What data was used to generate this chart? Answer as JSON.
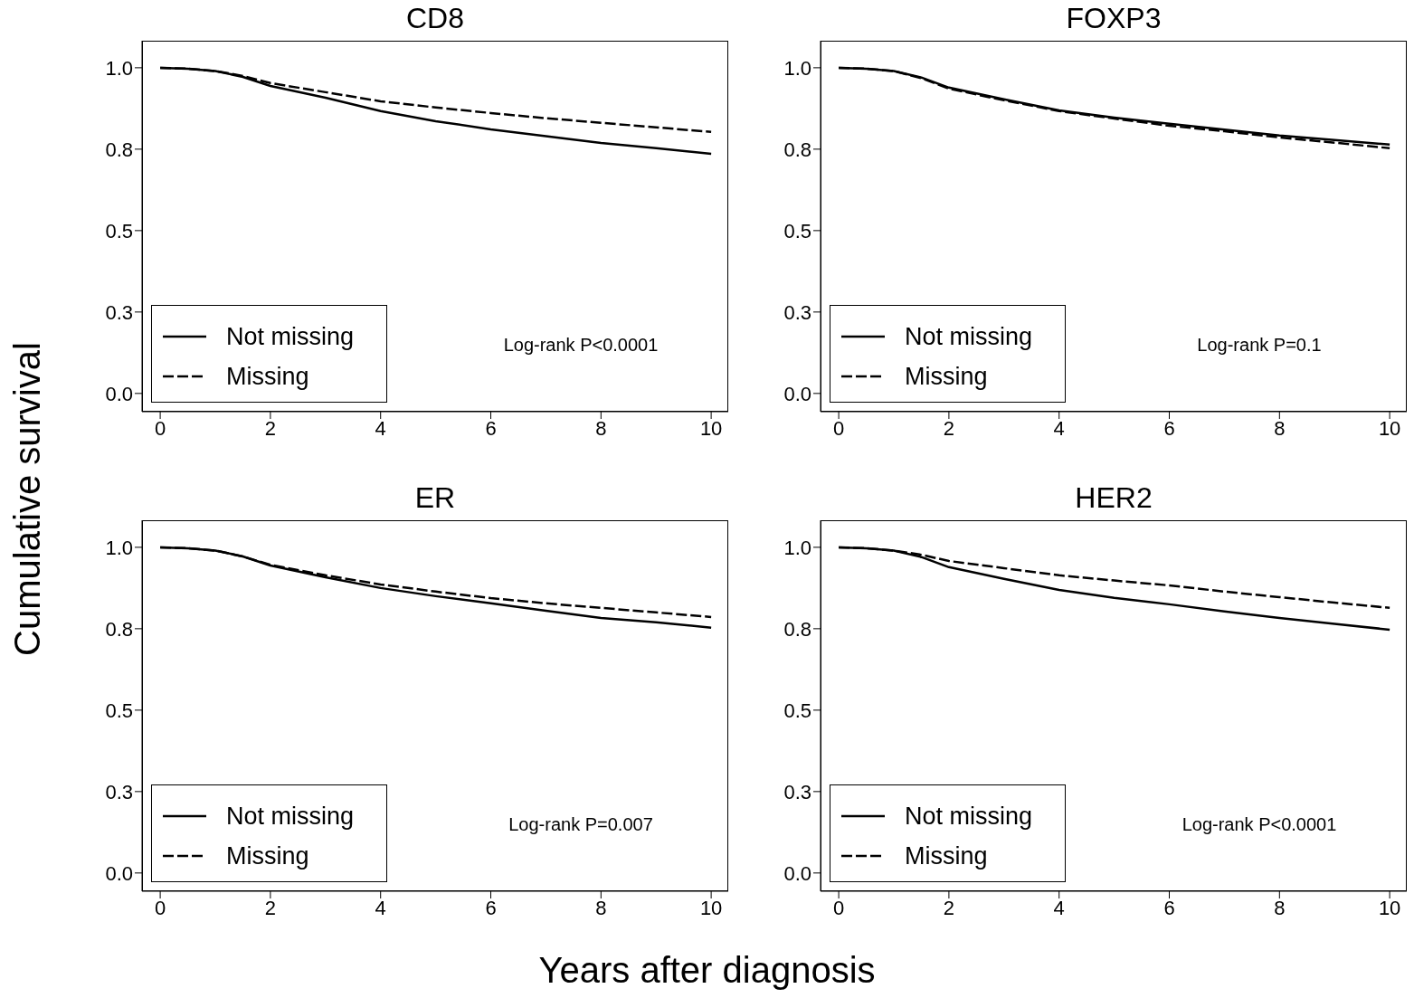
{
  "chart_data": [
    {
      "type": "line",
      "title": "CD8",
      "ylabel": "Cumulative survival",
      "x": [
        0,
        0.5,
        1,
        1.5,
        2,
        3,
        4,
        5,
        6,
        7,
        8,
        9,
        10
      ],
      "xlim": [
        -0.33,
        10.31
      ],
      "xticks": [
        0,
        2,
        4,
        6,
        8,
        10
      ],
      "ylim": [
        -0.056,
        1.083
      ],
      "yticks": [
        {
          "value": 0,
          "label": "0.0"
        },
        {
          "value": 0.25,
          "label": "0.3"
        },
        {
          "value": 0.5,
          "label": "0.5"
        },
        {
          "value": 0.75,
          "label": "0.8"
        },
        {
          "value": 1,
          "label": "1.0"
        }
      ],
      "legend": "bottom left",
      "grid": false,
      "marker": "none",
      "annotations": [
        "Log-rank P<0.0001"
      ],
      "series": [
        {
          "name": "Not missing",
          "color": "#000000",
          "line_style": "solid",
          "values": [
            1,
            0.997,
            0.99,
            0.972,
            0.944,
            0.908,
            0.867,
            0.836,
            0.811,
            0.79,
            0.769,
            0.753,
            0.736
          ]
        },
        {
          "name": "Missing",
          "color": "#000000",
          "line_style": "dashed",
          "values": [
            1,
            0.997,
            0.99,
            0.975,
            0.953,
            0.925,
            0.897,
            0.878,
            0.861,
            0.845,
            0.831,
            0.817,
            0.803
          ]
        }
      ]
    },
    {
      "type": "line",
      "title": "FOXP3",
      "x": [
        0,
        0.5,
        1,
        1.5,
        2,
        3,
        4,
        5,
        6,
        7,
        8,
        9,
        10
      ],
      "xlim": [
        -0.33,
        10.31
      ],
      "xticks": [
        0,
        2,
        4,
        6,
        8,
        10
      ],
      "ylim": [
        -0.056,
        1.083
      ],
      "yticks": [
        {
          "value": 0,
          "label": "0.0"
        },
        {
          "value": 0.25,
          "label": "0.3"
        },
        {
          "value": 0.5,
          "label": "0.5"
        },
        {
          "value": 0.75,
          "label": "0.8"
        },
        {
          "value": 1,
          "label": "1.0"
        }
      ],
      "legend": "bottom left",
      "grid": false,
      "marker": "none",
      "annotations": [
        "Log-rank P=0.1"
      ],
      "series": [
        {
          "name": "Not missing",
          "color": "#000000",
          "line_style": "solid",
          "values": [
            1,
            0.997,
            0.99,
            0.97,
            0.939,
            0.903,
            0.869,
            0.847,
            0.828,
            0.81,
            0.792,
            0.778,
            0.764
          ]
        },
        {
          "name": "Missing",
          "color": "#000000",
          "line_style": "dashed",
          "values": [
            1,
            0.997,
            0.99,
            0.968,
            0.936,
            0.9,
            0.867,
            0.844,
            0.822,
            0.805,
            0.786,
            0.77,
            0.753
          ]
        }
      ]
    },
    {
      "type": "line",
      "title": "ER",
      "xlabel": "Years after diagnosis",
      "x": [
        0,
        0.5,
        1,
        1.5,
        2,
        3,
        4,
        5,
        6,
        7,
        8,
        9,
        10
      ],
      "xlim": [
        -0.33,
        10.31
      ],
      "xticks": [
        0,
        2,
        4,
        6,
        8,
        10
      ],
      "ylim": [
        -0.056,
        1.083
      ],
      "yticks": [
        {
          "value": 0,
          "label": "0.0"
        },
        {
          "value": 0.25,
          "label": "0.3"
        },
        {
          "value": 0.5,
          "label": "0.5"
        },
        {
          "value": 0.75,
          "label": "0.8"
        },
        {
          "value": 1,
          "label": "1.0"
        }
      ],
      "legend": "bottom left",
      "grid": false,
      "marker": "none",
      "annotations": [
        "Log-rank P=0.007"
      ],
      "series": [
        {
          "name": "Not missing",
          "color": "#000000",
          "line_style": "solid",
          "values": [
            1,
            0.997,
            0.99,
            0.972,
            0.944,
            0.908,
            0.875,
            0.85,
            0.828,
            0.805,
            0.783,
            0.77,
            0.753
          ]
        },
        {
          "name": "Missing",
          "color": "#000000",
          "line_style": "dashed",
          "values": [
            1,
            0.997,
            0.99,
            0.972,
            0.946,
            0.914,
            0.886,
            0.864,
            0.844,
            0.828,
            0.814,
            0.8,
            0.786
          ]
        }
      ]
    },
    {
      "type": "line",
      "title": "HER2",
      "x": [
        0,
        0.5,
        1,
        1.5,
        2,
        3,
        4,
        5,
        6,
        7,
        8,
        9,
        10
      ],
      "xlim": [
        -0.33,
        10.31
      ],
      "xticks": [
        0,
        2,
        4,
        6,
        8,
        10
      ],
      "ylim": [
        -0.056,
        1.083
      ],
      "yticks": [
        {
          "value": 0,
          "label": "0.0"
        },
        {
          "value": 0.25,
          "label": "0.3"
        },
        {
          "value": 0.5,
          "label": "0.5"
        },
        {
          "value": 0.75,
          "label": "0.8"
        },
        {
          "value": 1,
          "label": "1.0"
        }
      ],
      "legend": "bottom left",
      "grid": false,
      "marker": "none",
      "annotations": [
        "Log-rank P<0.0001"
      ],
      "series": [
        {
          "name": "Not missing",
          "color": "#000000",
          "line_style": "solid",
          "values": [
            1,
            0.997,
            0.99,
            0.97,
            0.939,
            0.903,
            0.869,
            0.845,
            0.825,
            0.803,
            0.783,
            0.765,
            0.747
          ]
        },
        {
          "name": "Missing",
          "color": "#000000",
          "line_style": "dashed",
          "values": [
            1,
            0.997,
            0.99,
            0.977,
            0.958,
            0.936,
            0.914,
            0.898,
            0.883,
            0.864,
            0.847,
            0.83,
            0.814
          ]
        }
      ]
    }
  ]
}
